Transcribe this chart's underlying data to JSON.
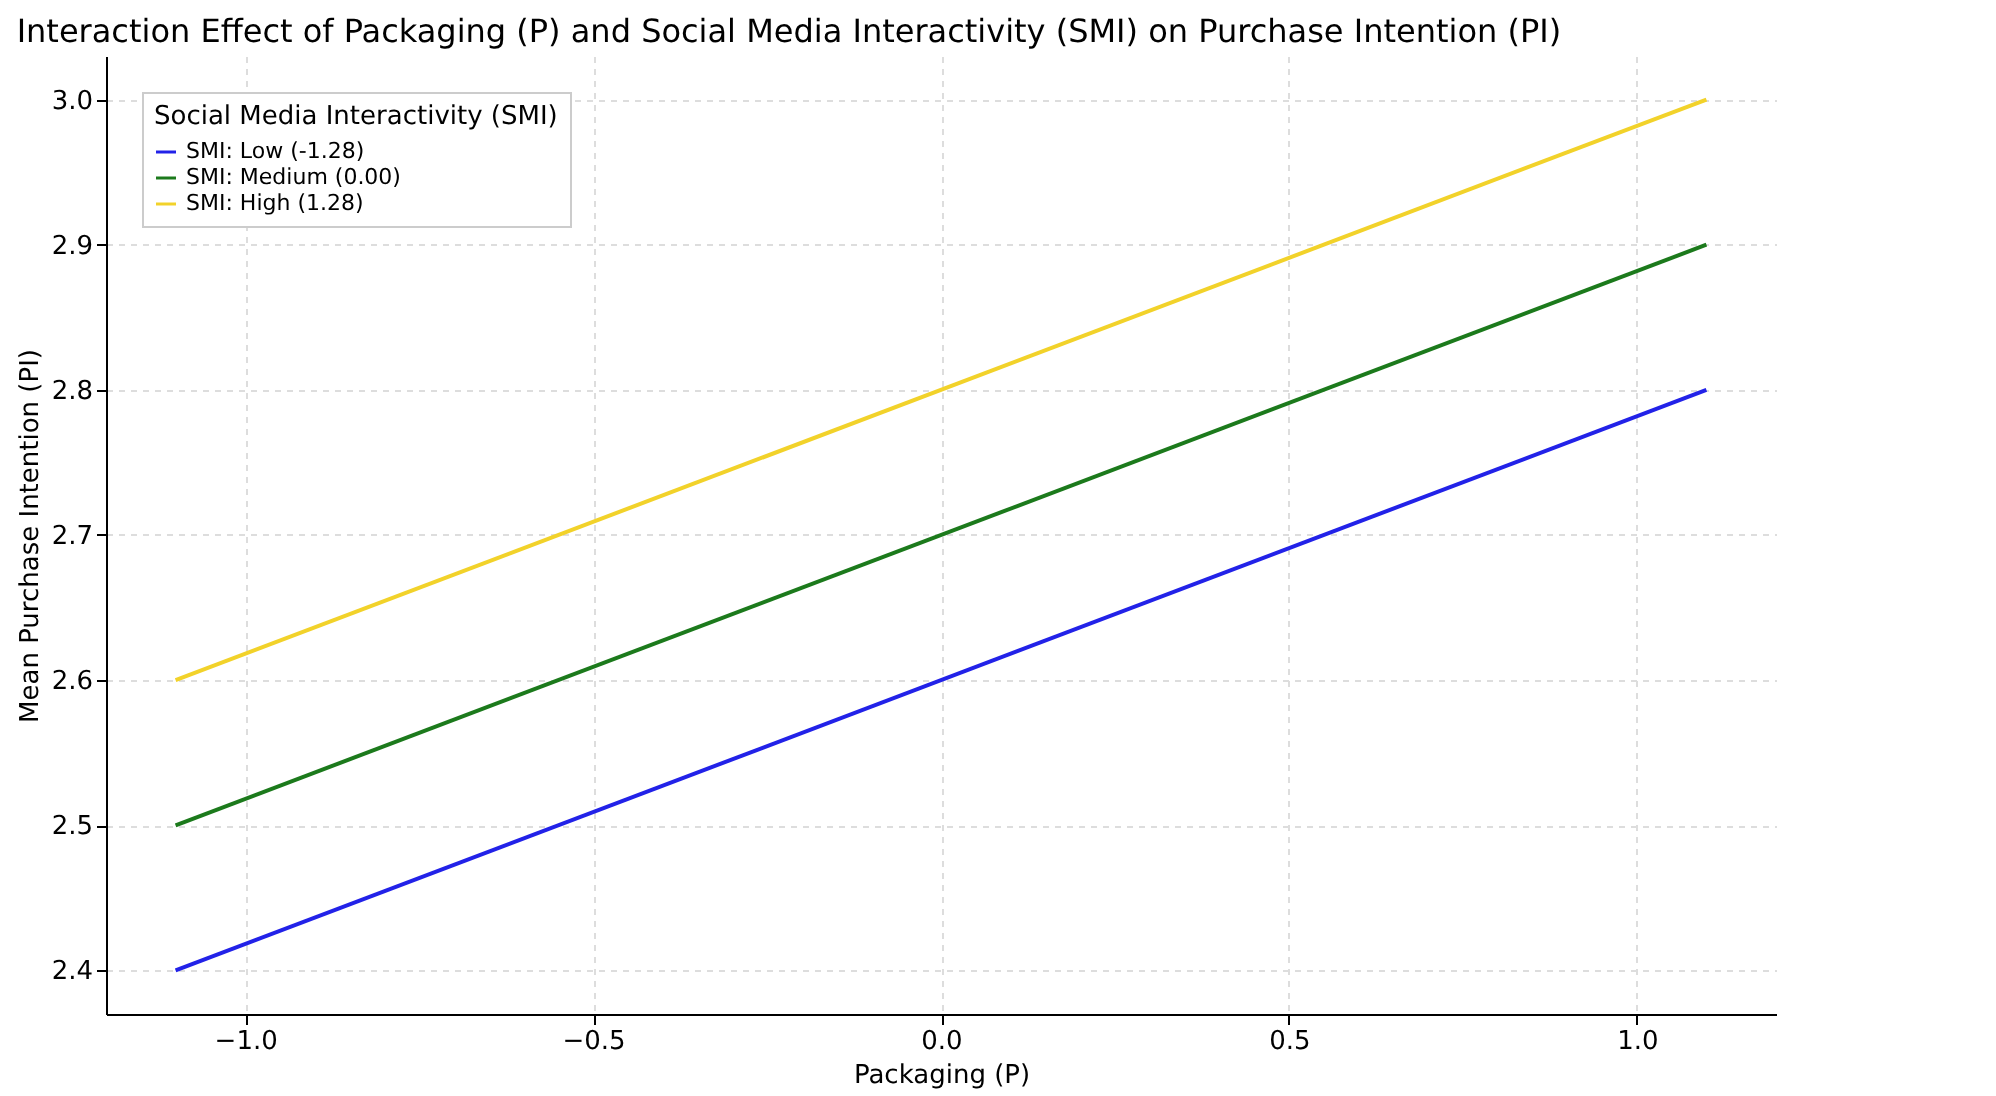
{
  "chart_data": {
    "type": "line",
    "title": "Interaction Effect of Packaging (P) and Social Media Interactivity (SMI) on Purchase Intention (PI)",
    "xlabel": "Packaging (P)",
    "ylabel": "Mean Purchase Intention (PI)",
    "legend_title": "Social Media Interactivity (SMI)",
    "x": [
      -1.1,
      1.1
    ],
    "series": [
      {
        "name": "SMI: Low (-1.28)",
        "color": "#2222e8",
        "values": [
          2.4,
          2.8
        ]
      },
      {
        "name": "SMI: Medium (0.00)",
        "color": "#1c7a1c",
        "values": [
          2.5,
          2.9
        ]
      },
      {
        "name": "SMI: High (1.28)",
        "color": "#f2d22a",
        "values": [
          2.6,
          3.0
        ]
      }
    ],
    "xlim": [
      -1.2,
      1.2
    ],
    "ylim": [
      2.37,
      3.03
    ],
    "xticks": [
      {
        "value": -1.0,
        "label": "−1.0"
      },
      {
        "value": -0.5,
        "label": "−0.5"
      },
      {
        "value": 0.0,
        "label": "0.0"
      },
      {
        "value": 0.5,
        "label": "0.5"
      },
      {
        "value": 1.0,
        "label": "1.0"
      }
    ],
    "yticks": [
      {
        "value": 2.4,
        "label": "2.4"
      },
      {
        "value": 2.5,
        "label": "2.5"
      },
      {
        "value": 2.6,
        "label": "2.6"
      },
      {
        "value": 2.7,
        "label": "2.7"
      },
      {
        "value": 2.8,
        "label": "2.8"
      },
      {
        "value": 2.9,
        "label": "2.9"
      },
      {
        "value": 3.0,
        "label": "3.0"
      }
    ],
    "grid": true,
    "legend": "top left",
    "marker": "none",
    "line_style": "solid"
  }
}
